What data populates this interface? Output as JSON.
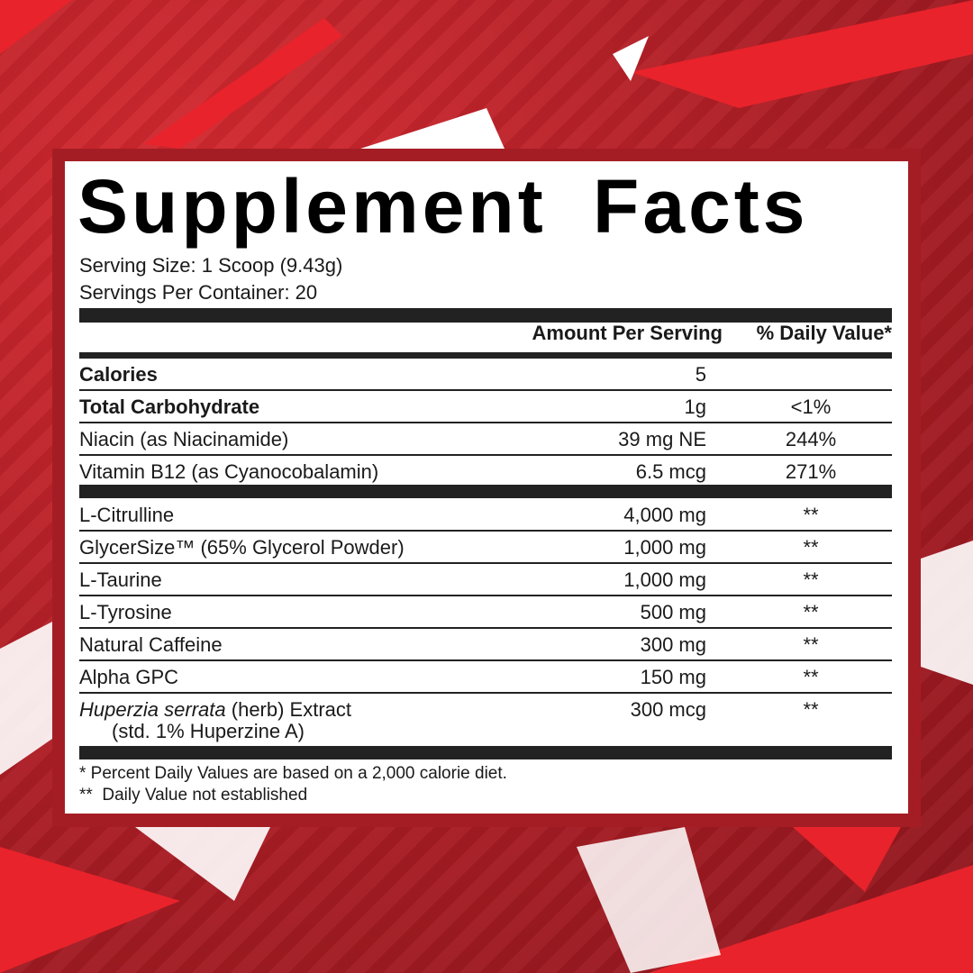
{
  "title": "Supplement Facts",
  "serving_size": "Serving Size: 1 Scoop (9.43g)",
  "servings_per_container": "Servings Per Container: 20",
  "header": {
    "amount": "Amount Per Serving",
    "dv": "% Daily Value*"
  },
  "rows": [
    {
      "name": "Calories",
      "amount": "5",
      "dv": ""
    },
    {
      "name": "Total Carbohydrate",
      "amount": "1g",
      "dv": "<1%"
    },
    {
      "name": "Niacin (as Niacinamide)",
      "amount": "39 mg NE",
      "dv": "244%"
    },
    {
      "name": "Vitamin B12 (as Cyanocobalamin)",
      "amount": "6.5 mcg",
      "dv": "271%"
    }
  ],
  "blend": [
    {
      "name": "L-Citrulline",
      "amount": "4,000 mg",
      "dv": "**"
    },
    {
      "name": "GlycerSize™ (65% Glycerol Powder)",
      "amount": "1,000 mg",
      "dv": "**"
    },
    {
      "name": "L-Taurine",
      "amount": "1,000 mg",
      "dv": "**"
    },
    {
      "name": "L-Tyrosine",
      "amount": "500 mg",
      "dv": "**"
    },
    {
      "name": "Natural Caffeine",
      "amount": "300 mg",
      "dv": "**"
    },
    {
      "name": "Alpha GPC",
      "amount": "150 mg",
      "dv": "**"
    }
  ],
  "huperzia": {
    "name_italic": "Huperzia serrata",
    "name_rest": " (herb) Extract",
    "sub": "(std. 1% Huperzine A)",
    "amount": "300 mcg",
    "dv": "**"
  },
  "footnotes": [
    "* Percent Daily Values are based on a 2,000 calorie diet.",
    "**  Daily Value not established"
  ],
  "colors": {
    "background": "#b8222a",
    "frame": "#a51d24",
    "accent": "#e8232b"
  }
}
